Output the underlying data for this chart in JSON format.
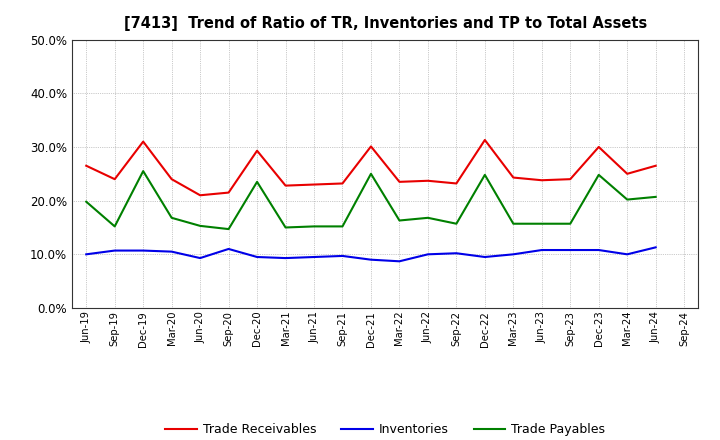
{
  "title": "[7413]  Trend of Ratio of TR, Inventories and TP to Total Assets",
  "labels": [
    "Jun-19",
    "Sep-19",
    "Dec-19",
    "Mar-20",
    "Jun-20",
    "Sep-20",
    "Dec-20",
    "Mar-21",
    "Jun-21",
    "Sep-21",
    "Dec-21",
    "Mar-22",
    "Jun-22",
    "Sep-22",
    "Dec-22",
    "Mar-23",
    "Jun-23",
    "Sep-23",
    "Dec-23",
    "Mar-24",
    "Jun-24",
    "Sep-24"
  ],
  "trade_receivables": [
    0.265,
    0.24,
    0.31,
    0.24,
    0.21,
    0.215,
    0.293,
    0.228,
    0.23,
    0.232,
    0.301,
    0.235,
    0.237,
    0.232,
    0.313,
    0.243,
    0.238,
    0.24,
    0.3,
    0.25,
    0.265,
    null
  ],
  "inventories": [
    0.1,
    0.107,
    0.107,
    0.105,
    0.093,
    0.11,
    0.095,
    0.093,
    0.095,
    0.097,
    0.09,
    0.087,
    0.1,
    0.102,
    0.095,
    0.1,
    0.108,
    0.108,
    0.108,
    0.1,
    0.113,
    null
  ],
  "trade_payables": [
    0.198,
    0.152,
    0.255,
    0.168,
    0.153,
    0.147,
    0.235,
    0.15,
    0.152,
    0.152,
    0.25,
    0.163,
    0.168,
    0.157,
    0.248,
    0.157,
    0.157,
    0.157,
    0.248,
    0.202,
    0.207,
    null
  ],
  "tr_color": "#e80000",
  "inv_color": "#0000e8",
  "tp_color": "#008000",
  "ylim": [
    0.0,
    0.5
  ],
  "yticks": [
    0.0,
    0.1,
    0.2,
    0.3,
    0.4,
    0.5
  ],
  "legend_labels": [
    "Trade Receivables",
    "Inventories",
    "Trade Payables"
  ],
  "background_color": "#ffffff",
  "grid_color": "#999999"
}
